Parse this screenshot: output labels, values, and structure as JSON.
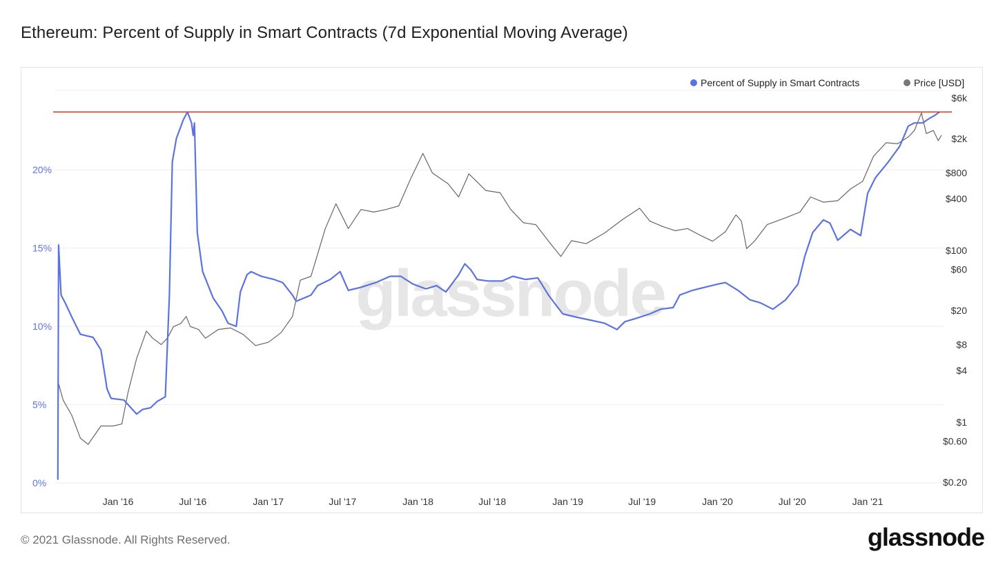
{
  "title": "Ethereum: Percent of Supply in Smart Contracts (7d Exponential Moving Average)",
  "footer": {
    "copyright": "© 2021 Glassnode. All Rights Reserved.",
    "brand": "glassnode"
  },
  "watermark": "glassnode",
  "colors": {
    "supply": "#5b73e0",
    "price": "#666666",
    "ath_line": "#e03c2c",
    "grid": "#eeeeee"
  },
  "chart_data": {
    "type": "line",
    "title": "Ethereum: Percent of Supply in Smart Contracts (7d Exponential Moving Average)",
    "legend": {
      "position": "top-right",
      "entries": [
        "Percent of Supply in Smart Contracts",
        "Price [USD]"
      ]
    },
    "x_ticks": [
      "Jan '16",
      "Jul '16",
      "Jan '17",
      "Jul '17",
      "Jan '18",
      "Jul '18",
      "Jan '19",
      "Jul '19",
      "Jan '20",
      "Jul '20",
      "Jan '21"
    ],
    "y_left": {
      "ticks": [
        "0%",
        "5%",
        "10%",
        "15%",
        "20%"
      ],
      "range": [
        0,
        25.3
      ]
    },
    "y_right": {
      "scale": "log",
      "ticks": [
        "$0.20",
        "$0.60",
        "$1",
        "$4",
        "$8",
        "$20",
        "$60",
        "$100",
        "$400",
        "$800",
        "$2k",
        "$6k"
      ]
    },
    "reference_line": {
      "value": 23.7,
      "units": "percent"
    },
    "series": [
      {
        "name": "Percent of Supply in Smart Contracts",
        "axis": "left",
        "points": [
          [
            "2015-08-07",
            0.2
          ],
          [
            "2015-08-09",
            15.2
          ],
          [
            "2015-08-15",
            12.0
          ],
          [
            "2015-08-25",
            11.5
          ],
          [
            "2015-09-10",
            10.6
          ],
          [
            "2015-10-01",
            9.5
          ],
          [
            "2015-11-01",
            9.3
          ],
          [
            "2015-11-20",
            8.5
          ],
          [
            "2015-12-05",
            6.0
          ],
          [
            "2015-12-15",
            5.4
          ],
          [
            "2016-01-15",
            5.3
          ],
          [
            "2016-02-15",
            4.4
          ],
          [
            "2016-03-01",
            4.7
          ],
          [
            "2016-03-20",
            4.8
          ],
          [
            "2016-04-05",
            5.2
          ],
          [
            "2016-04-25",
            5.5
          ],
          [
            "2016-05-05",
            12.0
          ],
          [
            "2016-05-12",
            20.5
          ],
          [
            "2016-05-22",
            22.0
          ],
          [
            "2016-06-08",
            23.2
          ],
          [
            "2016-06-18",
            23.7
          ],
          [
            "2016-06-28",
            23.0
          ],
          [
            "2016-07-02",
            22.2
          ],
          [
            "2016-07-05",
            23.0
          ],
          [
            "2016-07-12",
            16.0
          ],
          [
            "2016-07-25",
            13.5
          ],
          [
            "2016-08-20",
            11.8
          ],
          [
            "2016-09-10",
            11.0
          ],
          [
            "2016-09-25",
            10.2
          ],
          [
            "2016-10-15",
            10.0
          ],
          [
            "2016-10-25",
            12.2
          ],
          [
            "2016-11-10",
            13.3
          ],
          [
            "2016-11-20",
            13.5
          ],
          [
            "2016-12-15",
            13.2
          ],
          [
            "2017-01-15",
            13.0
          ],
          [
            "2017-02-05",
            12.8
          ],
          [
            "2017-03-01",
            12.0
          ],
          [
            "2017-03-10",
            11.6
          ],
          [
            "2017-04-15",
            12.0
          ],
          [
            "2017-05-01",
            12.6
          ],
          [
            "2017-06-01",
            13.0
          ],
          [
            "2017-06-25",
            13.5
          ],
          [
            "2017-07-15",
            12.3
          ],
          [
            "2017-08-15",
            12.5
          ],
          [
            "2017-09-20",
            12.8
          ],
          [
            "2017-10-25",
            13.2
          ],
          [
            "2017-11-20",
            13.2
          ],
          [
            "2017-12-20",
            12.7
          ],
          [
            "2018-01-20",
            12.4
          ],
          [
            "2018-02-15",
            12.6
          ],
          [
            "2018-03-10",
            12.2
          ],
          [
            "2018-04-10",
            13.3
          ],
          [
            "2018-04-25",
            14.0
          ],
          [
            "2018-05-10",
            13.6
          ],
          [
            "2018-05-25",
            13.0
          ],
          [
            "2018-06-20",
            12.9
          ],
          [
            "2018-07-25",
            12.9
          ],
          [
            "2018-08-20",
            13.2
          ],
          [
            "2018-09-20",
            13.0
          ],
          [
            "2018-10-20",
            13.1
          ],
          [
            "2018-11-15",
            12.0
          ],
          [
            "2018-12-05",
            11.3
          ],
          [
            "2018-12-20",
            10.8
          ],
          [
            "2019-01-20",
            10.6
          ],
          [
            "2019-02-25",
            10.4
          ],
          [
            "2019-04-01",
            10.2
          ],
          [
            "2019-05-01",
            9.8
          ],
          [
            "2019-05-20",
            10.3
          ],
          [
            "2019-06-15",
            10.5
          ],
          [
            "2019-07-20",
            10.8
          ],
          [
            "2019-08-15",
            11.1
          ],
          [
            "2019-09-15",
            11.2
          ],
          [
            "2019-10-01",
            12.0
          ],
          [
            "2019-11-01",
            12.3
          ],
          [
            "2019-12-01",
            12.5
          ],
          [
            "2020-01-01",
            12.7
          ],
          [
            "2020-01-20",
            12.8
          ],
          [
            "2020-02-20",
            12.3
          ],
          [
            "2020-03-20",
            11.7
          ],
          [
            "2020-04-15",
            11.5
          ],
          [
            "2020-05-15",
            11.1
          ],
          [
            "2020-06-15",
            11.7
          ],
          [
            "2020-07-15",
            12.7
          ],
          [
            "2020-08-01",
            14.5
          ],
          [
            "2020-08-20",
            16.0
          ],
          [
            "2020-09-15",
            16.8
          ],
          [
            "2020-10-01",
            16.6
          ],
          [
            "2020-10-20",
            15.5
          ],
          [
            "2020-11-20",
            16.2
          ],
          [
            "2020-12-15",
            15.8
          ],
          [
            "2021-01-01",
            18.5
          ],
          [
            "2021-01-20",
            19.5
          ],
          [
            "2021-02-20",
            20.5
          ],
          [
            "2021-03-20",
            21.5
          ],
          [
            "2021-04-10",
            22.8
          ],
          [
            "2021-04-25",
            23.0
          ],
          [
            "2021-05-15",
            23.0
          ],
          [
            "2021-06-01",
            23.3
          ],
          [
            "2021-06-15",
            23.5
          ],
          [
            "2021-06-25",
            23.7
          ]
        ]
      },
      {
        "name": "Price [USD]",
        "axis": "right",
        "points": [
          [
            "2015-08-07",
            1.0
          ],
          [
            "2015-08-09",
            2.8
          ],
          [
            "2015-08-20",
            1.8
          ],
          [
            "2015-09-10",
            1.2
          ],
          [
            "2015-10-01",
            0.65
          ],
          [
            "2015-10-20",
            0.55
          ],
          [
            "2015-11-20",
            0.9
          ],
          [
            "2015-12-20",
            0.9
          ],
          [
            "2016-01-10",
            0.95
          ],
          [
            "2016-01-25",
            2.2
          ],
          [
            "2016-02-15",
            5.5
          ],
          [
            "2016-03-10",
            11.5
          ],
          [
            "2016-03-25",
            9.5
          ],
          [
            "2016-04-15",
            8.0
          ],
          [
            "2016-04-30",
            9.5
          ],
          [
            "2016-05-15",
            13.0
          ],
          [
            "2016-06-01",
            14.0
          ],
          [
            "2016-06-15",
            17.0
          ],
          [
            "2016-06-25",
            13.0
          ],
          [
            "2016-07-15",
            12.0
          ],
          [
            "2016-08-01",
            9.5
          ],
          [
            "2016-09-01",
            12.0
          ],
          [
            "2016-10-01",
            12.5
          ],
          [
            "2016-11-01",
            10.5
          ],
          [
            "2016-12-01",
            7.8
          ],
          [
            "2017-01-01",
            8.5
          ],
          [
            "2017-02-01",
            11.0
          ],
          [
            "2017-03-01",
            17.0
          ],
          [
            "2017-03-20",
            45.0
          ],
          [
            "2017-04-15",
            50.0
          ],
          [
            "2017-05-20",
            180.0
          ],
          [
            "2017-06-15",
            350.0
          ],
          [
            "2017-07-15",
            180.0
          ],
          [
            "2017-08-15",
            300.0
          ],
          [
            "2017-09-15",
            280.0
          ],
          [
            "2017-10-15",
            300.0
          ],
          [
            "2017-11-15",
            330.0
          ],
          [
            "2017-12-15",
            700.0
          ],
          [
            "2018-01-13",
            1350.0
          ],
          [
            "2018-02-05",
            800.0
          ],
          [
            "2018-03-15",
            600.0
          ],
          [
            "2018-04-10",
            420.0
          ],
          [
            "2018-05-05",
            780.0
          ],
          [
            "2018-06-15",
            500.0
          ],
          [
            "2018-07-20",
            470.0
          ],
          [
            "2018-08-15",
            300.0
          ],
          [
            "2018-09-15",
            210.0
          ],
          [
            "2018-10-15",
            200.0
          ],
          [
            "2018-11-20",
            120.0
          ],
          [
            "2018-12-15",
            85.0
          ],
          [
            "2019-01-10",
            130.0
          ],
          [
            "2019-02-15",
            120.0
          ],
          [
            "2019-04-01",
            160.0
          ],
          [
            "2019-05-15",
            230.0
          ],
          [
            "2019-06-25",
            310.0
          ],
          [
            "2019-07-20",
            220.0
          ],
          [
            "2019-08-20",
            190.0
          ],
          [
            "2019-09-20",
            170.0
          ],
          [
            "2019-10-20",
            180.0
          ],
          [
            "2019-11-20",
            150.0
          ],
          [
            "2019-12-20",
            128.0
          ],
          [
            "2020-01-20",
            165.0
          ],
          [
            "2020-02-15",
            260.0
          ],
          [
            "2020-02-28",
            220.0
          ],
          [
            "2020-03-12",
            105.0
          ],
          [
            "2020-04-01",
            130.0
          ],
          [
            "2020-05-01",
            200.0
          ],
          [
            "2020-06-15",
            240.0
          ],
          [
            "2020-07-20",
            280.0
          ],
          [
            "2020-08-15",
            420.0
          ],
          [
            "2020-09-15",
            365.0
          ],
          [
            "2020-10-20",
            380.0
          ],
          [
            "2020-11-20",
            520.0
          ],
          [
            "2020-12-20",
            640.0
          ],
          [
            "2021-01-15",
            1250.0
          ],
          [
            "2021-02-15",
            1800.0
          ],
          [
            "2021-03-15",
            1750.0
          ],
          [
            "2021-04-10",
            2100.0
          ],
          [
            "2021-04-25",
            2500.0
          ],
          [
            "2021-05-12",
            4000.0
          ],
          [
            "2021-05-24",
            2300.0
          ],
          [
            "2021-06-10",
            2500.0
          ],
          [
            "2021-06-22",
            1900.0
          ],
          [
            "2021-06-30",
            2200.0
          ]
        ]
      }
    ]
  }
}
